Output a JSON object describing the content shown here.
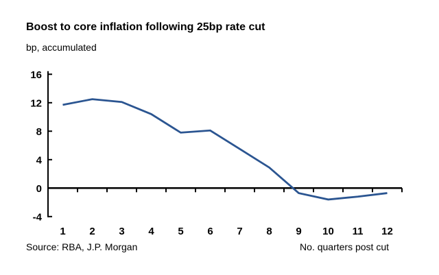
{
  "header": {
    "title": "Boost to core inflation following 25bp rate cut",
    "subtitle": "bp, accumulated"
  },
  "footer": {
    "source": "Source: RBA, J.P. Morgan",
    "xaxis_label": "No. quarters post cut"
  },
  "chart_data": {
    "type": "line",
    "title": "Boost to core inflation following 25bp rate cut",
    "ylabel": "bp, accumulated",
    "xlabel": "No. quarters post cut",
    "source": "Source: RBA, J.P. Morgan",
    "categories": [
      1,
      2,
      3,
      4,
      5,
      6,
      7,
      8,
      9,
      10,
      11,
      12
    ],
    "series": [
      {
        "name": "Boost to core inflation (bp, accumulated)",
        "values": [
          11.7,
          12.5,
          12.1,
          10.4,
          7.8,
          8.1,
          5.5,
          2.9,
          -0.7,
          -1.6,
          -1.2,
          -0.7
        ]
      }
    ],
    "ylim": [
      -4,
      16
    ],
    "yticks": [
      16,
      12,
      8,
      4,
      0,
      -4
    ],
    "grid": false,
    "legend": false,
    "line_color": "#2b5591",
    "axis_color": "#000000",
    "text_color": "#000000"
  }
}
